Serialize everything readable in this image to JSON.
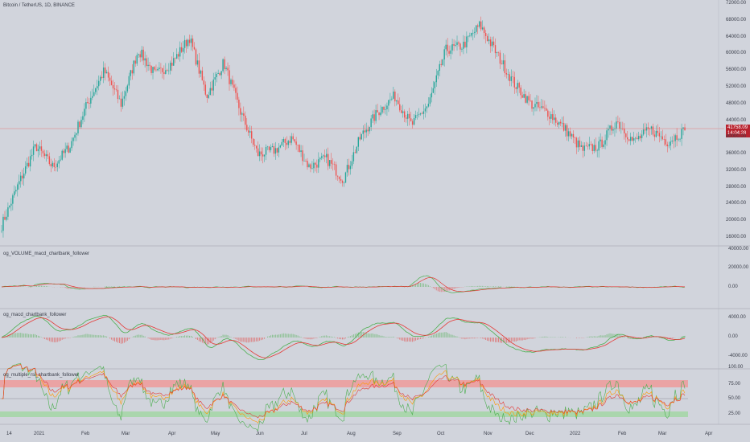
{
  "symbol_header": "Bitcoin / TetherUS, 1D, BINANCE",
  "last_price": "41758.09",
  "countdown": "14:04:28",
  "colors": {
    "up": "#26a69a",
    "down": "#ef5350",
    "green": "#4caf50",
    "red": "#e53935",
    "orange": "#ff9800",
    "band_red": "#ef9a9a",
    "band_green": "#a5d6a7"
  },
  "price_axis": [
    "72000.00",
    "68000.00",
    "64000.00",
    "60000.00",
    "56000.00",
    "52000.00",
    "48000.00",
    "44000.00",
    "40000.00",
    "36000.00",
    "32000.00",
    "28000.00",
    "24000.00",
    "20000.00",
    "16000.00"
  ],
  "price_axis_values": [
    72000,
    68000,
    64000,
    60000,
    56000,
    52000,
    48000,
    44000,
    40000,
    36000,
    32000,
    28000,
    24000,
    20000,
    16000
  ],
  "panes": [
    {
      "title": "og_VOLUME_macd_chartbank_follower",
      "axis": [
        "40000.00",
        "20000.00",
        "0.00"
      ]
    },
    {
      "title": "og_macd_chartbank_follower",
      "axis": [
        "4000.00",
        "0.00",
        "-4000.00"
      ]
    },
    {
      "title": "og_multiple_rsi_chartbank_follower",
      "axis": [
        "100.00",
        "75.00",
        "50.00",
        "25.00"
      ]
    }
  ],
  "time_axis": [
    "14",
    "2021",
    "Feb",
    "Mar",
    "Apr",
    "May",
    "Jun",
    "Jul",
    "Aug",
    "Sep",
    "Oct",
    "Nov",
    "Dec",
    "2022",
    "Feb",
    "Mar",
    "Apr"
  ],
  "chart_data": {
    "type": "candlestick",
    "series_anchor_closes": [
      {
        "x": "start",
        "price": 19000
      },
      {
        "x": "2021",
        "price": 29000
      },
      {
        "x": "Jan-mid",
        "price": 38000
      },
      {
        "x": "Jan-end",
        "price": 33000
      },
      {
        "x": "Feb",
        "price": 38000
      },
      {
        "x": "Feb-mid",
        "price": 48000
      },
      {
        "x": "Feb-late",
        "price": 56000
      },
      {
        "x": "Mar",
        "price": 48000
      },
      {
        "x": "Mar-mid",
        "price": 61000
      },
      {
        "x": "Mar-late",
        "price": 55000
      },
      {
        "x": "Apr",
        "price": 58000
      },
      {
        "x": "Apr-mid",
        "price": 64000
      },
      {
        "x": "Apr-late",
        "price": 50000
      },
      {
        "x": "May",
        "price": 58000
      },
      {
        "x": "May-mid",
        "price": 46000
      },
      {
        "x": "May-late",
        "price": 36000
      },
      {
        "x": "Jun",
        "price": 37000
      },
      {
        "x": "Jun-mid",
        "price": 40000
      },
      {
        "x": "Jun-late",
        "price": 33000
      },
      {
        "x": "Jul",
        "price": 35000
      },
      {
        "x": "Jul-late",
        "price": 30000
      },
      {
        "x": "Aug",
        "price": 40000
      },
      {
        "x": "Aug-mid",
        "price": 46000
      },
      {
        "x": "Sep",
        "price": 50000
      },
      {
        "x": "Sep-mid",
        "price": 43000
      },
      {
        "x": "Oct",
        "price": 48000
      },
      {
        "x": "Oct-mid",
        "price": 61000
      },
      {
        "x": "Oct-late",
        "price": 62000
      },
      {
        "x": "Nov",
        "price": 67000
      },
      {
        "x": "Nov-mid",
        "price": 60000
      },
      {
        "x": "Dec",
        "price": 53000
      },
      {
        "x": "Dec-mid",
        "price": 48000
      },
      {
        "x": "2022",
        "price": 46000
      },
      {
        "x": "Jan-mid",
        "price": 42000
      },
      {
        "x": "Jan-late",
        "price": 37000
      },
      {
        "x": "Feb",
        "price": 38000
      },
      {
        "x": "Feb-mid",
        "price": 44000
      },
      {
        "x": "Feb-late",
        "price": 39000
      },
      {
        "x": "Mar",
        "price": 42000
      },
      {
        "x": "Mar-mid",
        "price": 39000
      },
      {
        "x": "end",
        "price": 41758
      }
    ],
    "ylim": [
      14000,
      72000
    ]
  }
}
